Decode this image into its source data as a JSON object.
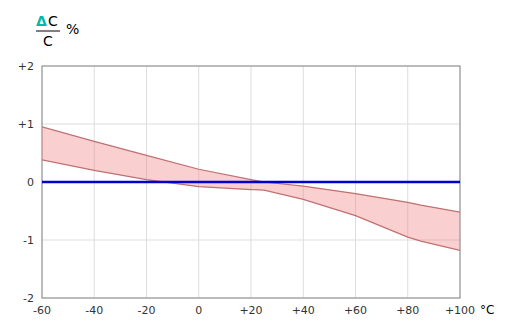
{
  "chart_data": {
    "type": "band",
    "xlabel": "°C",
    "ylabel": {
      "delta": "Δ",
      "numerator": "C",
      "unit": "%",
      "denominator": "C",
      "delta_color": "#00b8a8"
    },
    "x": [
      -60,
      -40,
      -20,
      0,
      20,
      25,
      40,
      60,
      80,
      85,
      100
    ],
    "series": [
      {
        "color": "#c07070",
        "values": [
          0.95,
          0.7,
          0.46,
          0.22,
          0.04,
          0.0,
          -0.07,
          -0.2,
          -0.35,
          -0.4,
          -0.52
        ]
      },
      {
        "color": "#c07070",
        "values": [
          0.38,
          0.2,
          0.04,
          -0.08,
          -0.13,
          -0.14,
          -0.3,
          -0.58,
          -0.95,
          -1.02,
          -1.18
        ]
      }
    ],
    "color": "#f08080",
    "hline": {
      "value": 0,
      "color": "#0000cc"
    },
    "xlim": [
      -60,
      100
    ],
    "ylim": [
      -2,
      2
    ],
    "xticks": [
      -60,
      -40,
      -20,
      0,
      {
        "value": 20,
        "label": "+20"
      },
      {
        "value": 40,
        "label": "+40"
      },
      {
        "value": 60,
        "label": "+60"
      },
      {
        "value": 80,
        "label": "+80"
      },
      {
        "value": 100,
        "label": "+100"
      }
    ],
    "yticks": [
      -2,
      -1,
      0,
      {
        "value": 1,
        "label": "+1"
      },
      {
        "value": 2,
        "label": "+2"
      }
    ],
    "grid": true
  }
}
